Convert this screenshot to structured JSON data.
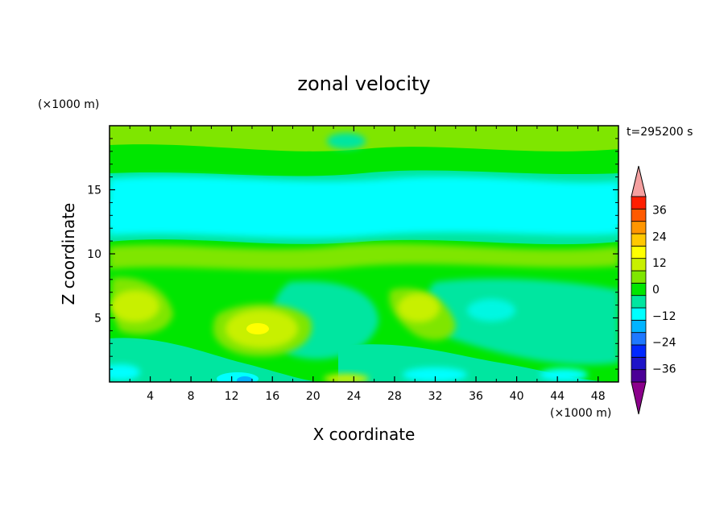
{
  "chart_data": {
    "type": "heatmap",
    "title": "zonal velocity",
    "xlabel": "X coordinate",
    "ylabel": "Z coordinate",
    "x_unit": "(×1000 m)",
    "y_unit": "(×1000 m)",
    "time_label": "t=295200 s",
    "xlim": [
      0,
      50
    ],
    "ylim": [
      0,
      20
    ],
    "x_ticks": [
      4,
      8,
      12,
      16,
      20,
      24,
      28,
      32,
      36,
      40,
      44,
      48
    ],
    "y_ticks": [
      5,
      10,
      15
    ],
    "colorbar": {
      "levels": [
        -42,
        -36,
        -30,
        -24,
        -18,
        -12,
        -6,
        0,
        6,
        12,
        18,
        24,
        30,
        36,
        42
      ],
      "tick_labels": [
        36,
        24,
        12,
        0,
        -12,
        -24,
        -36
      ],
      "colors": [
        "#8b008b",
        "#4b0096",
        "#1e14c8",
        "#0028ff",
        "#1e78ff",
        "#00b4ff",
        "#00ffff",
        "#00e6a0",
        "#00e600",
        "#7fe600",
        "#c8f000",
        "#ffff00",
        "#ffc800",
        "#ff9600",
        "#ff5a00",
        "#ff1e00",
        "#f5a0a0"
      ]
    },
    "field_features": [
      {
        "x": 14,
        "z": 4,
        "value": 14
      },
      {
        "x": 31,
        "z": 6,
        "value": 10
      },
      {
        "x": 5,
        "z": 6.5,
        "value": 8
      },
      {
        "x": 14,
        "z": 0.2,
        "value": -16
      },
      {
        "x": 36,
        "z": 0.3,
        "value": -10
      },
      {
        "x": 25,
        "z": 14,
        "value": -10
      },
      {
        "x": 25,
        "z": 10.2,
        "value": 4
      }
    ]
  }
}
